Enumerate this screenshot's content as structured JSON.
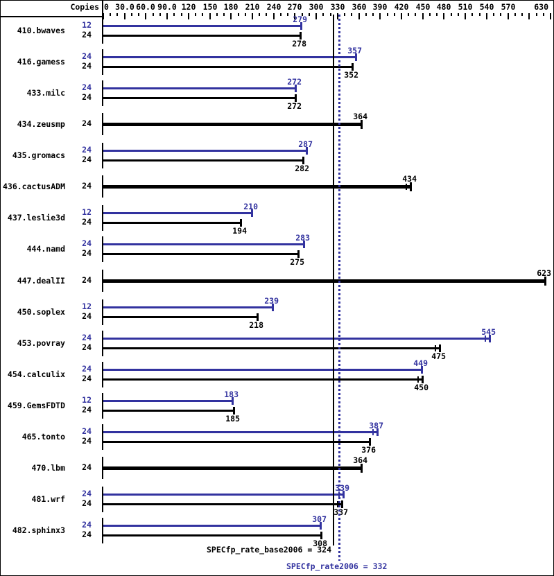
{
  "chart_data": {
    "type": "bar",
    "orientation": "horizontal",
    "copies_header": "Copies",
    "axis": {
      "min": 0,
      "max": 640,
      "tick_step": 10,
      "major_tick_step": 30,
      "labels": [
        {
          "value": 0,
          "label": "0"
        },
        {
          "value": 30,
          "label": "30.0"
        },
        {
          "value": 60,
          "label": "60.0"
        },
        {
          "value": 90,
          "label": "90.0"
        },
        {
          "value": 120,
          "label": "120"
        },
        {
          "value": 150,
          "label": "150"
        },
        {
          "value": 180,
          "label": "180"
        },
        {
          "value": 210,
          "label": "210"
        },
        {
          "value": 240,
          "label": "240"
        },
        {
          "value": 270,
          "label": "270"
        },
        {
          "value": 300,
          "label": "300"
        },
        {
          "value": 330,
          "label": "330"
        },
        {
          "value": 360,
          "label": "360"
        },
        {
          "value": 390,
          "label": "390"
        },
        {
          "value": 420,
          "label": "420"
        },
        {
          "value": 450,
          "label": "450"
        },
        {
          "value": 480,
          "label": "480"
        },
        {
          "value": 510,
          "label": "510"
        },
        {
          "value": 540,
          "label": "540"
        },
        {
          "value": 570,
          "label": "570"
        },
        {
          "value": 630,
          "label": "630"
        }
      ]
    },
    "benchmarks": [
      {
        "name": "410.bwaves",
        "bars": [
          {
            "copies": "12",
            "run": "peak",
            "value": 279
          },
          {
            "copies": "24",
            "run": "base",
            "value": 278
          }
        ]
      },
      {
        "name": "416.gamess",
        "bars": [
          {
            "copies": "24",
            "run": "peak",
            "value": 357
          },
          {
            "copies": "24",
            "run": "base",
            "value": 352
          }
        ]
      },
      {
        "name": "433.milc",
        "bars": [
          {
            "copies": "24",
            "run": "peak",
            "value": 272
          },
          {
            "copies": "24",
            "run": "base",
            "value": 272
          }
        ]
      },
      {
        "name": "434.zeusmp",
        "bars": [
          {
            "copies": "24",
            "run": "base",
            "value": 364,
            "thick": true
          }
        ]
      },
      {
        "name": "435.gromacs",
        "bars": [
          {
            "copies": "24",
            "run": "peak",
            "value": 287
          },
          {
            "copies": "24",
            "run": "base",
            "value": 282
          }
        ]
      },
      {
        "name": "436.cactusADM",
        "bars": [
          {
            "copies": "24",
            "run": "base",
            "value": 434,
            "thick": true,
            "median_tick": true
          }
        ]
      },
      {
        "name": "437.leslie3d",
        "bars": [
          {
            "copies": "12",
            "run": "peak",
            "value": 210
          },
          {
            "copies": "24",
            "run": "base",
            "value": 194
          }
        ]
      },
      {
        "name": "444.namd",
        "bars": [
          {
            "copies": "24",
            "run": "peak",
            "value": 283
          },
          {
            "copies": "24",
            "run": "base",
            "value": 275
          }
        ]
      },
      {
        "name": "447.dealII",
        "bars": [
          {
            "copies": "24",
            "run": "base",
            "value": 623,
            "thick": true
          }
        ]
      },
      {
        "name": "450.soplex",
        "bars": [
          {
            "copies": "12",
            "run": "peak",
            "value": 239
          },
          {
            "copies": "24",
            "run": "base",
            "value": 218
          }
        ]
      },
      {
        "name": "453.povray",
        "bars": [
          {
            "copies": "24",
            "run": "peak",
            "value": 545,
            "median_tick": true
          },
          {
            "copies": "24",
            "run": "base",
            "value": 475,
            "median_tick": true
          }
        ]
      },
      {
        "name": "454.calculix",
        "bars": [
          {
            "copies": "24",
            "run": "peak",
            "value": 449
          },
          {
            "copies": "24",
            "run": "base",
            "value": 450,
            "median_tick": true
          }
        ]
      },
      {
        "name": "459.GemsFDTD",
        "bars": [
          {
            "copies": "12",
            "run": "peak",
            "value": 183
          },
          {
            "copies": "24",
            "run": "base",
            "value": 185
          }
        ]
      },
      {
        "name": "465.tonto",
        "bars": [
          {
            "copies": "24",
            "run": "peak",
            "value": 387,
            "median_tick": true
          },
          {
            "copies": "24",
            "run": "base",
            "value": 376
          }
        ]
      },
      {
        "name": "470.lbm",
        "bars": [
          {
            "copies": "24",
            "run": "base",
            "value": 364,
            "thick": true
          }
        ]
      },
      {
        "name": "481.wrf",
        "bars": [
          {
            "copies": "24",
            "run": "peak",
            "value": 339,
            "median_tick": true
          },
          {
            "copies": "24",
            "run": "base",
            "value": 337,
            "median_tick": true
          }
        ]
      },
      {
        "name": "482.sphinx3",
        "bars": [
          {
            "copies": "24",
            "run": "peak",
            "value": 307
          },
          {
            "copies": "24",
            "run": "base",
            "value": 308
          }
        ]
      }
    ],
    "reference_lines": [
      {
        "run": "base",
        "value": 324,
        "style": "solid"
      },
      {
        "run": "peak",
        "value": 332,
        "style": "dotted"
      }
    ],
    "summary": {
      "base_label": "SPECfp_rate_base2006 = 324",
      "peak_label": "SPECfp_rate2006 = 332"
    },
    "colors": {
      "base": "#000000",
      "peak": "#32329f"
    }
  }
}
